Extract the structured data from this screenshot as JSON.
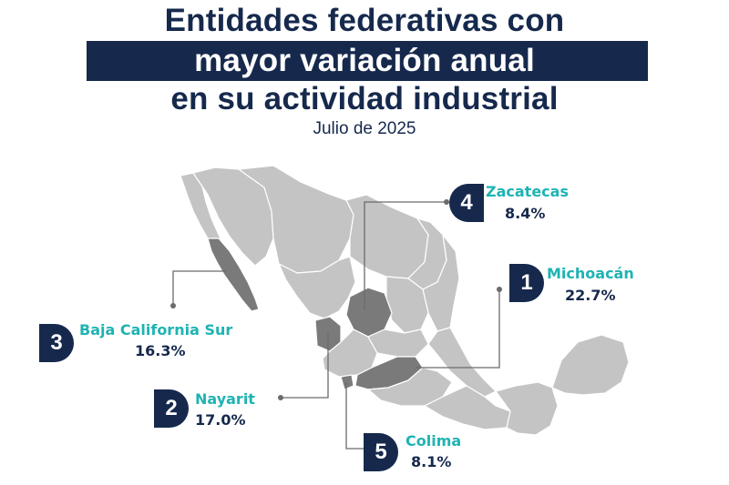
{
  "title": {
    "line1": "Entidades federativas con",
    "line2": "mayor variación anual",
    "line3": "en su actividad industrial"
  },
  "subtitle": "Julio de 2025",
  "colors": {
    "navy": "#16294d",
    "teal": "#1fb3b3",
    "map_gray": "#c4c4c4",
    "highlight_gray": "#7a7a7a"
  },
  "rankings": [
    {
      "rank": "1",
      "state": "Michoacán",
      "value": "22.7%"
    },
    {
      "rank": "2",
      "state": "Nayarit",
      "value": "17.0%"
    },
    {
      "rank": "3",
      "state": "Baja California Sur",
      "value": "16.3%"
    },
    {
      "rank": "4",
      "state": "Zacatecas",
      "value": "8.4%"
    },
    {
      "rank": "5",
      "state": "Colima",
      "value": "8.1%"
    }
  ]
}
